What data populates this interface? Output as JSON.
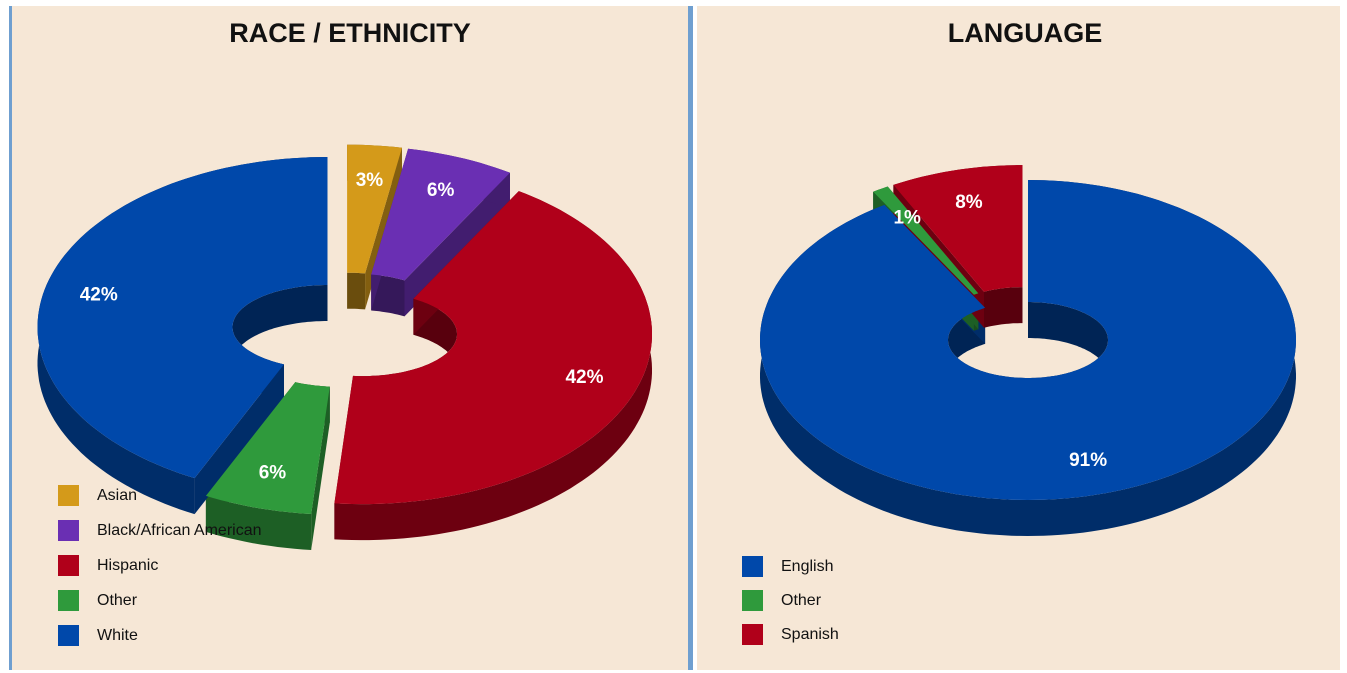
{
  "chart_data": [
    {
      "type": "pie",
      "title": "RACE / ETHNICITY",
      "categories": [
        "Asian",
        "Black/African American",
        "Hispanic",
        "Other",
        "White"
      ],
      "values": [
        3,
        6,
        42,
        6,
        42
      ],
      "value_labels": [
        "3%",
        "6%",
        "42%",
        "6%",
        "42%"
      ],
      "colors": [
        "#d49a1a",
        "#6a2fb3",
        "#b0001a",
        "#2f9a3c",
        "#0048aa"
      ]
    },
    {
      "type": "pie",
      "title": "LANGUAGE",
      "categories": [
        "English",
        "Other",
        "Spanish"
      ],
      "values": [
        91,
        1,
        8
      ],
      "value_labels": [
        "91%",
        "1%",
        "8%"
      ],
      "colors": [
        "#0048aa",
        "#2f9a3c",
        "#b0001a"
      ]
    }
  ]
}
